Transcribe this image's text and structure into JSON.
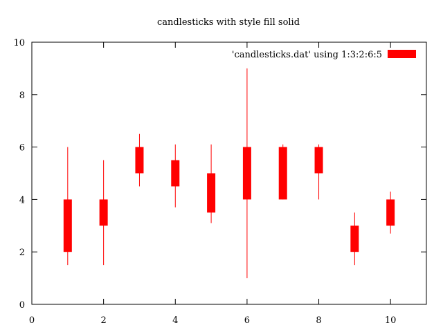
{
  "chart_data": {
    "type": "candlestick",
    "title": "candlesticks with style fill solid",
    "xlabel": "",
    "ylabel": "",
    "xlim": [
      0,
      11
    ],
    "ylim": [
      0,
      10
    ],
    "x_ticks": [
      "0",
      "2",
      "4",
      "6",
      "8",
      "10"
    ],
    "y_ticks": [
      "0",
      "2",
      "4",
      "6",
      "8",
      "10"
    ],
    "grid": false,
    "legend_position": "top-right",
    "color": "#ff0000",
    "series": [
      {
        "name": "'candlesticks.dat' using 1:3:2:6:5",
        "points": [
          {
            "x": 1,
            "open": 2,
            "low": 1.5,
            "high": 6,
            "close": 4
          },
          {
            "x": 2,
            "open": 3,
            "low": 1.5,
            "high": 5.5,
            "close": 4
          },
          {
            "x": 3,
            "open": 5,
            "low": 4.5,
            "high": 6.5,
            "close": 6
          },
          {
            "x": 4,
            "open": 4.5,
            "low": 3.7,
            "high": 6.1,
            "close": 5.5
          },
          {
            "x": 5,
            "open": 3.5,
            "low": 3.1,
            "high": 6.1,
            "close": 5
          },
          {
            "x": 6,
            "open": 4,
            "low": 1,
            "high": 9,
            "close": 6
          },
          {
            "x": 7,
            "open": 4,
            "low": 4,
            "high": 6.1,
            "close": 6
          },
          {
            "x": 8,
            "open": 5,
            "low": 4,
            "high": 6.1,
            "close": 6
          },
          {
            "x": 9,
            "open": 2,
            "low": 1.5,
            "high": 3.5,
            "close": 3
          },
          {
            "x": 10,
            "open": 3,
            "low": 2.7,
            "high": 4.3,
            "close": 4
          }
        ]
      }
    ]
  }
}
